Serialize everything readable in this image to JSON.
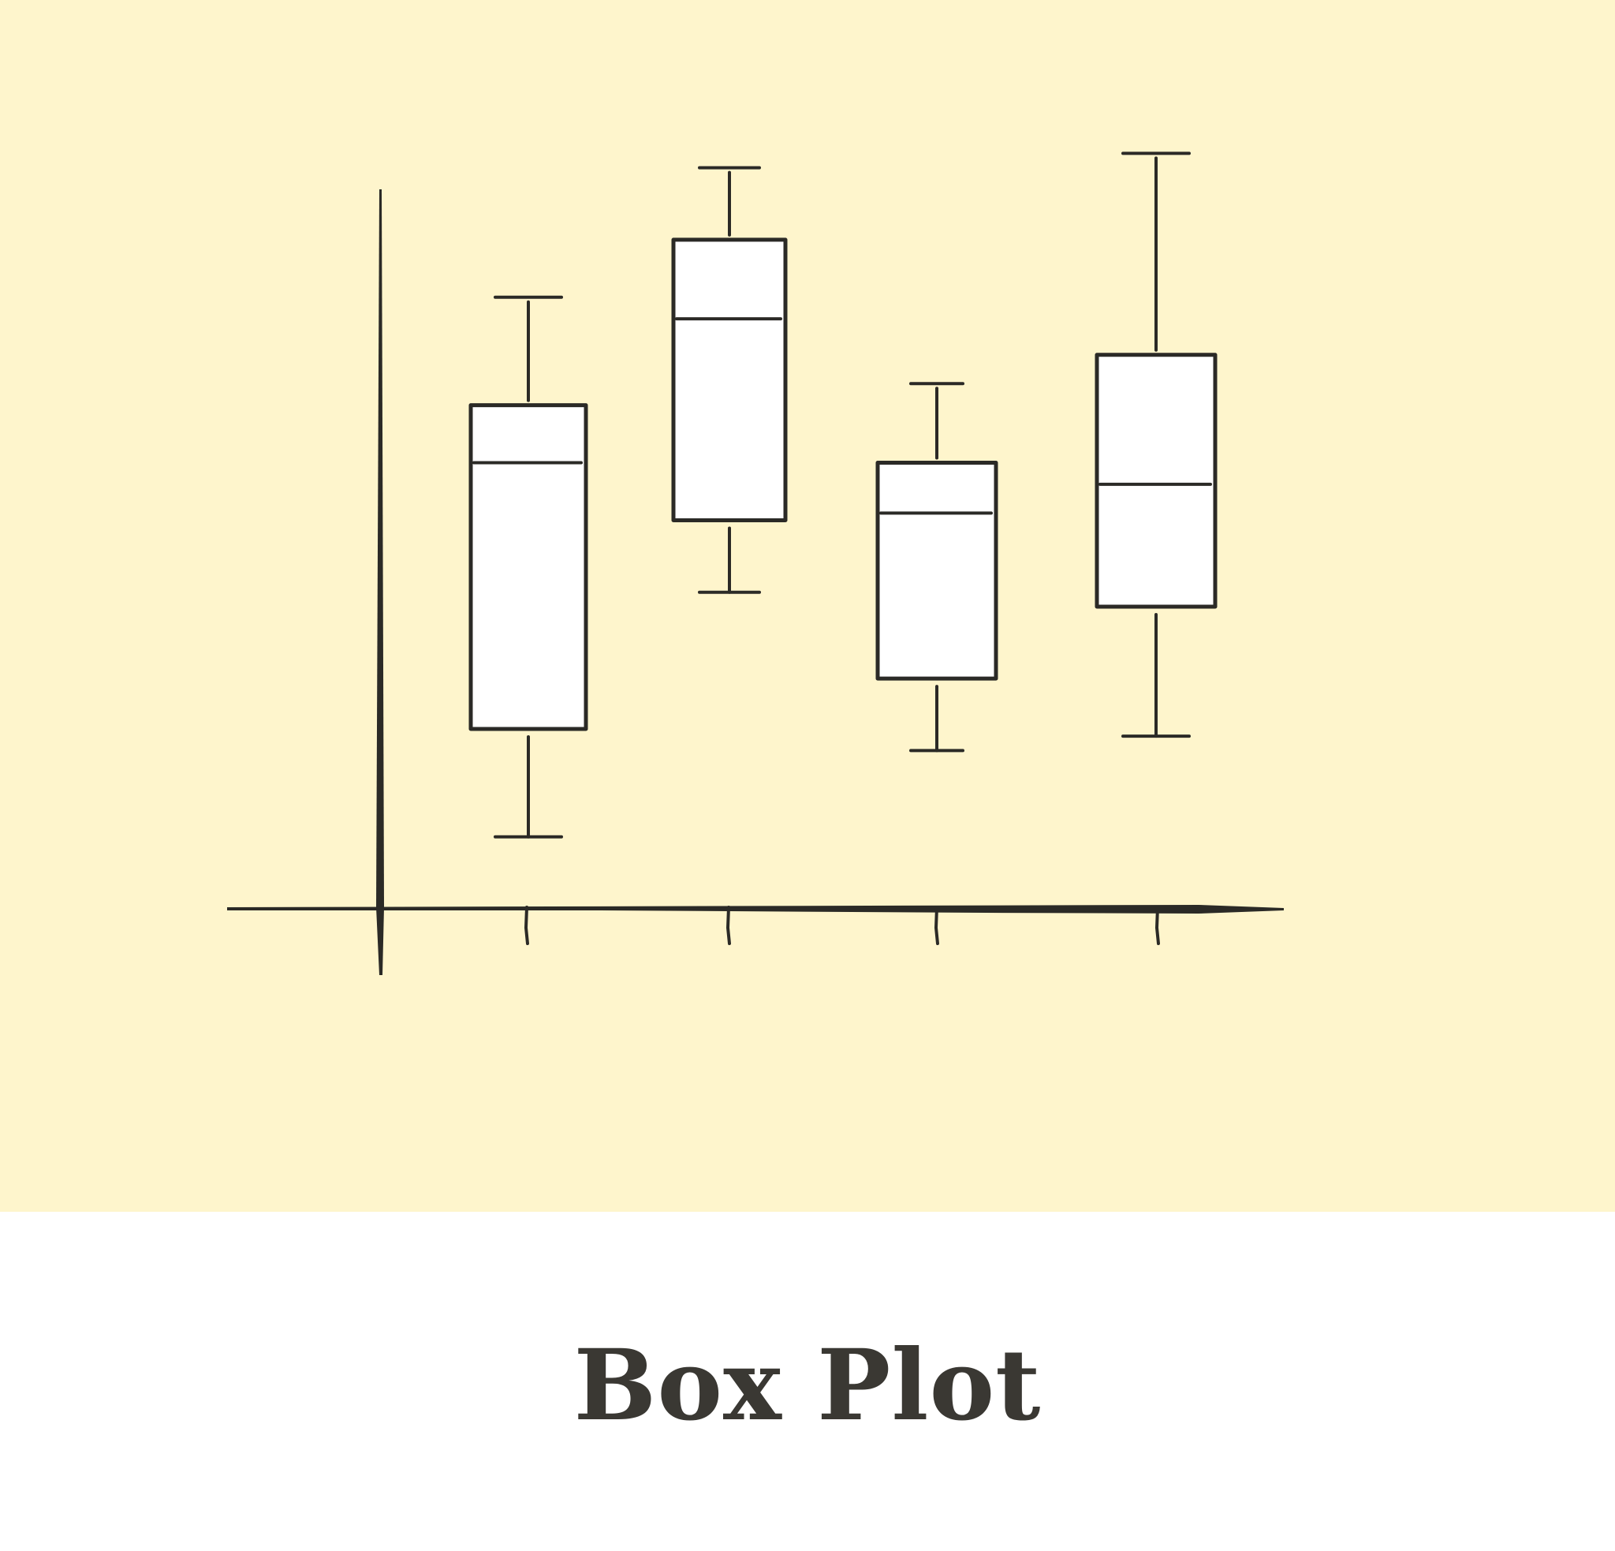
{
  "caption": {
    "title": "Box Plot"
  },
  "colors": {
    "panel_background": "#FEF5CC",
    "ink": "#2B2A26",
    "box_fill": "#FFFFFF",
    "caption_background": "#FFFFFF",
    "caption_text": "#3A3833"
  },
  "chart_data": {
    "type": "box",
    "title": "",
    "xlabel": "",
    "ylabel": "",
    "categories": [
      "",
      "",
      "",
      ""
    ],
    "ylim": [
      0,
      10
    ],
    "boxes": [
      {
        "min": 1.0,
        "q1": 2.5,
        "median": 6.2,
        "q3": 7.0,
        "max": 8.5
      },
      {
        "min": 4.4,
        "q1": 5.4,
        "median": 8.2,
        "q3": 9.3,
        "max": 10.3
      },
      {
        "min": 2.2,
        "q1": 3.2,
        "median": 5.5,
        "q3": 6.2,
        "max": 7.3
      },
      {
        "min": 2.4,
        "q1": 4.2,
        "median": 5.9,
        "q3": 7.7,
        "max": 10.5
      }
    ],
    "grid": false,
    "legend": "none"
  }
}
